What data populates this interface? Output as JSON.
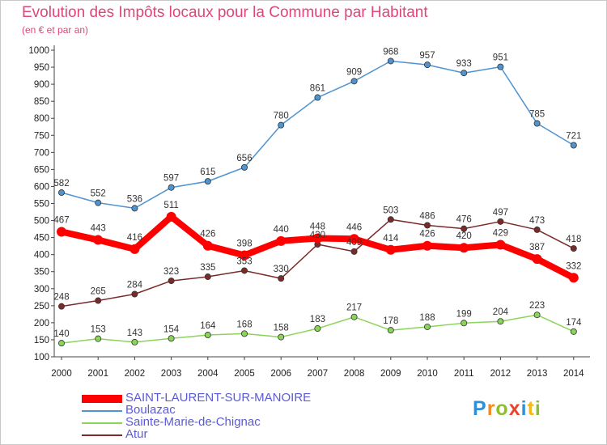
{
  "header": {
    "title": "Evolution des Impôts locaux pour la Commune par Habitant",
    "subtitle": "(en € et par an)"
  },
  "chart_data": {
    "type": "line",
    "title": "Evolution des Impôts locaux pour la Commune par Habitant",
    "subtitle": "(en € et par an)",
    "xlabel": "",
    "ylabel": "",
    "x": [
      "2000",
      "2001",
      "2002",
      "2003",
      "2004",
      "2005",
      "2006",
      "2007",
      "2008",
      "2009",
      "2010",
      "2011",
      "2012",
      "2013",
      "2014"
    ],
    "yticks": [
      100,
      150,
      200,
      250,
      300,
      350,
      400,
      450,
      500,
      550,
      600,
      650,
      700,
      750,
      800,
      850,
      900,
      950,
      1000
    ],
    "ylim": [
      100,
      1000
    ],
    "grid": false,
    "legend": "bottom-left",
    "series": [
      {
        "name": "SAINT-LAURENT-SUR-MANOIRE",
        "color": "#ff0000",
        "values": [
          467,
          443,
          416,
          511,
          426,
          398,
          440,
          448,
          446,
          414,
          426,
          420,
          429,
          387,
          332
        ]
      },
      {
        "name": "Boulazac",
        "color": "#4f93cf",
        "values": [
          582,
          552,
          536,
          597,
          615,
          656,
          780,
          861,
          909,
          968,
          957,
          933,
          951,
          785,
          721
        ]
      },
      {
        "name": "Sainte-Marie-de-Chignac",
        "color": "#8bd45a",
        "values": [
          140,
          153,
          143,
          154,
          164,
          168,
          158,
          183,
          217,
          178,
          188,
          199,
          204,
          223,
          174
        ]
      },
      {
        "name": "Atur",
        "color": "#7b2a2a",
        "values": [
          248,
          265,
          284,
          323,
          335,
          353,
          330,
          430,
          409,
          503,
          486,
          476,
          497,
          473,
          418
        ]
      }
    ]
  },
  "legend": {
    "items": [
      {
        "label": "SAINT-LAURENT-SUR-MANOIRE",
        "color": "#ff0000"
      },
      {
        "label": "Boulazac",
        "color": "#4f93cf"
      },
      {
        "label": "Sainte-Marie-de-Chignac",
        "color": "#8bd45a"
      },
      {
        "label": "Atur",
        "color": "#7b2a2a"
      }
    ]
  },
  "logo": {
    "letters": [
      {
        "ch": "P",
        "color": "#2f8fd8"
      },
      {
        "ch": "r",
        "color": "#f08a24"
      },
      {
        "ch": "o",
        "color": "#8fbf2a"
      },
      {
        "ch": "x",
        "color": "#e8442e"
      },
      {
        "ch": "i",
        "color": "#2f8fd8"
      },
      {
        "ch": "t",
        "color": "#f5b81a"
      },
      {
        "ch": "i",
        "color": "#8fbf2a"
      }
    ]
  }
}
